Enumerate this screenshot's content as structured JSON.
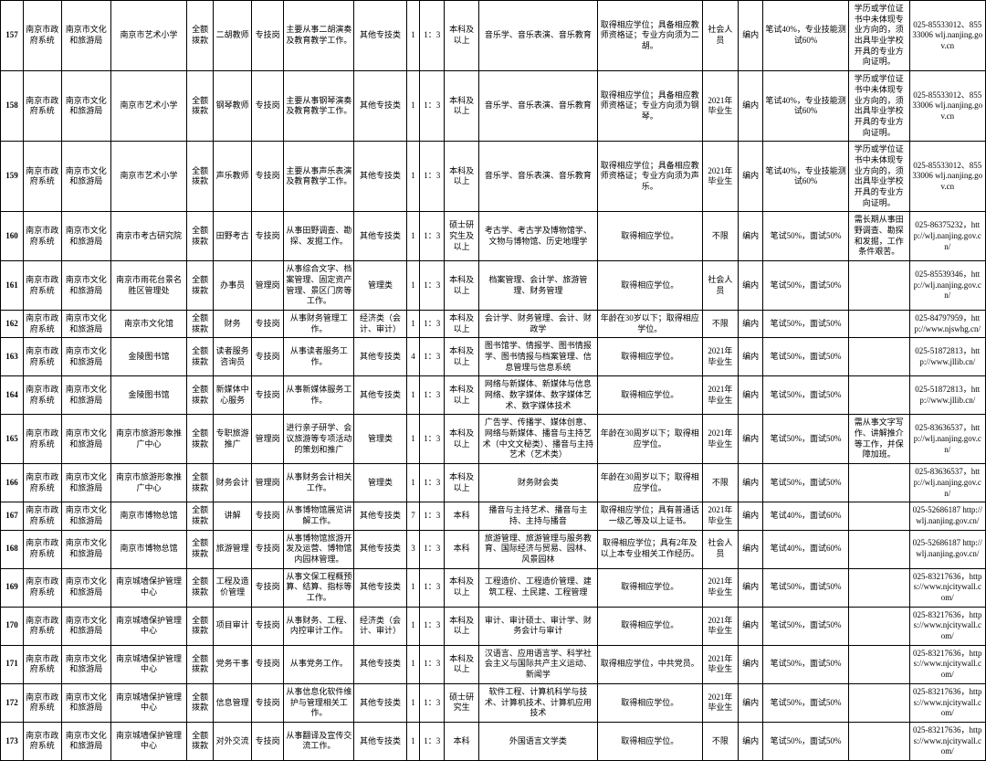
{
  "rows": [
    {
      "id": "157",
      "sys": "南京市政府系统",
      "dept": "南京市文化和旅游局",
      "unit": "南京市艺术小学",
      "fund": "全额拨款",
      "post": "二胡教师",
      "ptype": "专技岗",
      "duty": "主要从事二胡演奏及教育教学工作。",
      "cat": "其他专技类",
      "num": "1",
      "ratio": "1：3",
      "edu": "本科及以上",
      "major": "音乐学、音乐表演、音乐教育",
      "req": "取得相应学位；具备相应教师资格证；专业方向须为二胡。",
      "target": "社会人员",
      "estab": "编内",
      "exam": "笔试40%，专业技能测试60%",
      "note": "学历或学位证书中未体现专业方向的，须出具毕业学校开具的专业方向证明。",
      "contact": "025-85533012、85533006 wlj.nanjing.gov.cn"
    },
    {
      "id": "158",
      "sys": "南京市政府系统",
      "dept": "南京市文化和旅游局",
      "unit": "南京市艺术小学",
      "fund": "全额拨款",
      "post": "钢琴教师",
      "ptype": "专技岗",
      "duty": "主要从事钢琴演奏及教育教学工作。",
      "cat": "其他专技类",
      "num": "1",
      "ratio": "1：3",
      "edu": "本科及以上",
      "major": "音乐学、音乐表演、音乐教育",
      "req": "取得相应学位；具备相应教师资格证；专业方向须为钢琴。",
      "target": "2021年毕业生",
      "estab": "编内",
      "exam": "笔试40%，专业技能测试60%",
      "note": "学历或学位证书中未体现专业方向的，须出具毕业学校开具的专业方向证明。",
      "contact": "025-85533012、85533006 wlj.nanjing.gov.cn"
    },
    {
      "id": "159",
      "sys": "南京市政府系统",
      "dept": "南京市文化和旅游局",
      "unit": "南京市艺术小学",
      "fund": "全额拨款",
      "post": "声乐教师",
      "ptype": "专技岗",
      "duty": "主要从事声乐表演及教育教学工作。",
      "cat": "其他专技类",
      "num": "1",
      "ratio": "1：3",
      "edu": "本科及以上",
      "major": "音乐学、音乐表演、音乐教育",
      "req": "取得相应学位；具备相应教师资格证；专业方向须为声乐。",
      "target": "2021年毕业生",
      "estab": "编内",
      "exam": "笔试40%，专业技能测试60%",
      "note": "学历或学位证书中未体现专业方向的，须出具毕业学校开具的专业方向证明。",
      "contact": "025-85533012、85533006 wlj.nanjing.gov.cn"
    },
    {
      "id": "160",
      "sys": "南京市政府系统",
      "dept": "南京市文化和旅游局",
      "unit": "南京市考古研究院",
      "fund": "全额拨款",
      "post": "田野考古",
      "ptype": "专技岗",
      "duty": "从事田野调查、勘探、发掘工作。",
      "cat": "其他专技类",
      "num": "1",
      "ratio": "1：3",
      "edu": "硕士研究生及以上",
      "major": "考古学、考古学及博物馆学、文物与博物馆、历史地理学",
      "req": "取得相应学位。",
      "target": "不限",
      "estab": "编内",
      "exam": "笔试50%，面试50%",
      "note": "需长期从事田野调查、勘探和发掘，工作条件艰苦。",
      "contact": "025-86375232，http://wlj.nanjing.gov.cn/"
    },
    {
      "id": "161",
      "sys": "南京市政府系统",
      "dept": "南京市文化和旅游局",
      "unit": "南京市雨花台景名胜区管理处",
      "fund": "全额拨款",
      "post": "办事员",
      "ptype": "管理岗",
      "duty": "从事综合文字、档案管理、固定资产管理、景区门房等工作。",
      "cat": "管理类",
      "num": "1",
      "ratio": "1：3",
      "edu": "本科及以上",
      "major": "档案管理、会计学、旅游管理、财务管理",
      "req": "取得相应学位。",
      "target": "社会人员",
      "estab": "编内",
      "exam": "笔试50%，面试50%",
      "note": "",
      "contact": "025-85539346，http://wlj.nanjing.gov.cn/"
    },
    {
      "id": "162",
      "sys": "南京市政府系统",
      "dept": "南京市文化和旅游局",
      "unit": "南京市文化馆",
      "fund": "全额拨款",
      "post": "财务",
      "ptype": "专技岗",
      "duty": "从事财务管理工作。",
      "cat": "经济类（会计、审计）",
      "num": "1",
      "ratio": "1：3",
      "edu": "本科及以上",
      "major": "会计学、财务管理、会计、财政学",
      "req": "年龄在30岁以下；取得相应学位。",
      "target": "不限",
      "estab": "编内",
      "exam": "笔试50%，面试50%",
      "note": "",
      "contact": "025-84797959，http://www.njswhg.cn/"
    },
    {
      "id": "163",
      "sys": "南京市政府系统",
      "dept": "南京市文化和旅游局",
      "unit": "金陵图书馆",
      "fund": "全额拨款",
      "post": "读者服务咨询员",
      "ptype": "专技岗",
      "duty": "从事读者服务工作。",
      "cat": "其他专技类",
      "num": "4",
      "ratio": "1：3",
      "edu": "本科及以上",
      "major": "图书馆学、情报学、图书情报学、图书情报与档案管理、信息管理与信息系统",
      "req": "取得相应学位。",
      "target": "2021年毕业生",
      "estab": "编内",
      "exam": "笔试50%，面试50%",
      "note": "",
      "contact": "025-51872813，http://www.jllib.cn/"
    },
    {
      "id": "164",
      "sys": "南京市政府系统",
      "dept": "南京市文化和旅游局",
      "unit": "金陵图书馆",
      "fund": "全额拨款",
      "post": "新媒体中心服务",
      "ptype": "专技岗",
      "duty": "从事新媒体服务工作。",
      "cat": "其他专技类",
      "num": "1",
      "ratio": "1：3",
      "edu": "本科及以上",
      "major": "网络与新媒体、新媒体与信息网络、数字媒体、数字媒体艺术、数字媒体技术",
      "req": "取得相应学位。",
      "target": "2021年毕业生",
      "estab": "编内",
      "exam": "笔试50%，面试50%",
      "note": "",
      "contact": "025-51872813，http://www.jllib.cn/"
    },
    {
      "id": "165",
      "sys": "南京市政府系统",
      "dept": "南京市文化和旅游局",
      "unit": "南京市旅游形象推广中心",
      "fund": "全额拨款",
      "post": "专职旅游推广",
      "ptype": "管理岗",
      "duty": "进行亲子研学、会议旅游等专项活动的策划和推广",
      "cat": "管理类",
      "num": "1",
      "ratio": "1：3",
      "edu": "本科及以上",
      "major": "广告学、传播学、媒体创意、网络与新媒体、播音与主持艺术（中文文秘类）、播音与主持艺术（艺术类）",
      "req": "年龄在30周岁以下；取得相应学位。",
      "target": "2021年毕业生",
      "estab": "编内",
      "exam": "笔试50%，面试50%",
      "note": "需从事文字写作、讲解推介等工作，并保障加班。",
      "contact": "025-83636537，http://wlj.nanjing.gov.cn/"
    },
    {
      "id": "166",
      "sys": "南京市政府系统",
      "dept": "南京市文化和旅游局",
      "unit": "南京市旅游形象推广中心",
      "fund": "全额拨款",
      "post": "财务会计",
      "ptype": "管理岗",
      "duty": "从事财务会计相关工作。",
      "cat": "管理类",
      "num": "1",
      "ratio": "1：3",
      "edu": "本科及以上",
      "major": "财务财会类",
      "req": "年龄在30周岁以下；取得相应学位。",
      "target": "不限",
      "estab": "编内",
      "exam": "笔试50%，面试50%",
      "note": "",
      "contact": "025-83636537，http://wlj.nanjing.gov.cn/"
    },
    {
      "id": "167",
      "sys": "南京市政府系统",
      "dept": "南京市文化和旅游局",
      "unit": "南京市博物总馆",
      "fund": "全额拨款",
      "post": "讲解",
      "ptype": "专技岗",
      "duty": "从事博物馆展览讲解工作。",
      "cat": "其他专技类",
      "num": "7",
      "ratio": "1：3",
      "edu": "本科",
      "major": "播音与主持艺术、播音与主持、主持与播音",
      "req": "取得相应学位；具有普通话一级乙等及以上证书。",
      "target": "2021年毕业生",
      "estab": "编内",
      "exam": "笔试40%，面试60%",
      "note": "",
      "contact": "025-52686187 http://wlj.nanjing.gov.cn/"
    },
    {
      "id": "168",
      "sys": "南京市政府系统",
      "dept": "南京市文化和旅游局",
      "unit": "南京市博物总馆",
      "fund": "全额拨款",
      "post": "旅游管理",
      "ptype": "专技岗",
      "duty": "从事博物馆旅游开发及运营、博物馆内园林管理。",
      "cat": "其他专技类",
      "num": "3",
      "ratio": "1：3",
      "edu": "本科",
      "major": "旅游管理、旅游管理与服务教育、国际经济与贸易、园林、风景园林",
      "req": "取得相应学位；具有2年及以上本专业相关工作经历。",
      "target": "社会人员",
      "estab": "编内",
      "exam": "笔试40%，面试60%",
      "note": "",
      "contact": "025-52686187 http://wlj.nanjing.gov.cn/"
    },
    {
      "id": "169",
      "sys": "南京市政府系统",
      "dept": "南京市文化和旅游局",
      "unit": "南京城墙保护管理中心",
      "fund": "全额拨款",
      "post": "工程及造价管理",
      "ptype": "专技岗",
      "duty": "从事文保工程概预算、结算、指标等工作。",
      "cat": "其他专技类",
      "num": "1",
      "ratio": "1：3",
      "edu": "本科及以上",
      "major": "工程造价、工程造价管理、建筑工程、土民建、工程管理",
      "req": "取得相应学位。",
      "target": "2021年毕业生",
      "estab": "编内",
      "exam": "笔试50%，面试50%",
      "note": "",
      "contact": "025-83217636，https://www.njcitywall.com/"
    },
    {
      "id": "170",
      "sys": "南京市政府系统",
      "dept": "南京市文化和旅游局",
      "unit": "南京城墙保护管理中心",
      "fund": "全额拨款",
      "post": "项目审计",
      "ptype": "专技岗",
      "duty": "从事财务、工程、内控审计工作。",
      "cat": "经济类（会计、审计）",
      "num": "1",
      "ratio": "1：3",
      "edu": "本科及以上",
      "major": "审计、审计硕士、审计学、财务会计与审计",
      "req": "取得相应学位。",
      "target": "2021年毕业生",
      "estab": "编内",
      "exam": "笔试50%，面试50%",
      "note": "",
      "contact": "025-83217636，https://www.njcitywall.com/"
    },
    {
      "id": "171",
      "sys": "南京市政府系统",
      "dept": "南京市文化和旅游局",
      "unit": "南京城墙保护管理中心",
      "fund": "全额拨款",
      "post": "党务干事",
      "ptype": "专技岗",
      "duty": "从事党务工作。",
      "cat": "其他专技类",
      "num": "1",
      "ratio": "1：3",
      "edu": "本科及以上",
      "major": "汉语言、应用语言学、科学社会主义与国际共产主义运动、新闻学",
      "req": "取得相应学位，中共党员。",
      "target": "2021年毕业生",
      "estab": "编内",
      "exam": "笔试50%，面试50%",
      "note": "",
      "contact": "025-83217636，https://www.njcitywall.com/"
    },
    {
      "id": "172",
      "sys": "南京市政府系统",
      "dept": "南京市文化和旅游局",
      "unit": "南京城墙保护管理中心",
      "fund": "全额拨款",
      "post": "信息管理",
      "ptype": "专技岗",
      "duty": "从事信息化软件维护与管理相关工作。",
      "cat": "其他专技类",
      "num": "1",
      "ratio": "1：3",
      "edu": "硕士研究生",
      "major": "软件工程、计算机科学与技术、计算机技术、计算机应用技术",
      "req": "取得相应学位。",
      "target": "2021年毕业生",
      "estab": "编内",
      "exam": "笔试50%，面试50%",
      "note": "",
      "contact": "025-83217636，https://www.njcitywall.com/"
    },
    {
      "id": "173",
      "sys": "南京市政府系统",
      "dept": "南京市文化和旅游局",
      "unit": "南京城墙保护管理中心",
      "fund": "全额拨款",
      "post": "对外交流",
      "ptype": "专技岗",
      "duty": "从事翻译及宣传交流工作。",
      "cat": "其他专技类",
      "num": "1",
      "ratio": "1：3",
      "edu": "本科",
      "major": "外国语言文学类",
      "req": "取得相应学位。",
      "target": "不限",
      "estab": "编内",
      "exam": "笔试50%，面试50%",
      "note": "",
      "contact": "025-83217636，https://www.njcitywall.com/"
    }
  ]
}
